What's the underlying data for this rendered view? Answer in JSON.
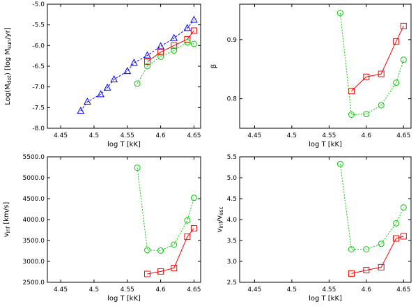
{
  "chart_data": [
    {
      "id": "mdot",
      "type": "line",
      "title": "",
      "xlabel": "log T [kK]",
      "ylabel_parts": [
        {
          "t": "Log(M"
        },
        {
          "t": "dot",
          "sub": true
        },
        {
          "t": ") [log M"
        },
        {
          "t": "sun",
          "sub": true
        },
        {
          "t": "/yr]"
        }
      ],
      "xlim": [
        4.43,
        4.66
      ],
      "ylim": [
        -8.0,
        -5.0
      ],
      "xticks": [
        4.45,
        4.5,
        4.55,
        4.6,
        4.65
      ],
      "xtick_labels": [
        "4.45",
        "4.5",
        "4.55",
        "4.6",
        "4.65"
      ],
      "yticks": [
        -8.0,
        -7.5,
        -7.0,
        -6.5,
        -6.0,
        -5.5,
        -5.0
      ],
      "ytick_labels": [
        "-8.0",
        "-7.5",
        "-7.0",
        "-6.5",
        "-6.0",
        "-5.5",
        "-5.0"
      ],
      "series": [
        {
          "name": "blue triangles",
          "color": "#0000ff",
          "marker": "triangle",
          "dash": "3,2",
          "x": [
            4.48,
            4.49,
            4.51,
            4.52,
            4.53,
            4.55,
            4.56,
            4.58,
            4.6,
            4.62,
            4.64,
            4.65
          ],
          "y": [
            -7.58,
            -7.36,
            -7.18,
            -7.02,
            -6.82,
            -6.62,
            -6.42,
            -6.24,
            -6.02,
            -5.82,
            -5.58,
            -5.38
          ]
        },
        {
          "name": "red squares",
          "color": "#ff0000",
          "marker": "square",
          "dash": "",
          "x": [
            4.58,
            4.6,
            4.62,
            4.64,
            4.65
          ],
          "y": [
            -6.39,
            -6.16,
            -6.0,
            -5.85,
            -5.64
          ]
        },
        {
          "name": "green circles",
          "color": "#00cc00",
          "marker": "circle",
          "dash": "2,2",
          "x": [
            4.565,
            4.58,
            4.6,
            4.62,
            4.64,
            4.65
          ],
          "y": [
            -6.92,
            -6.5,
            -6.27,
            -6.12,
            -5.92,
            -5.96
          ]
        }
      ]
    },
    {
      "id": "beta",
      "type": "line",
      "title": "",
      "xlabel": "log T [kK]",
      "ylabel_parts": [
        {
          "t": "β"
        }
      ],
      "xlim": [
        4.43,
        4.66
      ],
      "ylim": [
        0.75,
        0.96
      ],
      "xticks": [
        4.45,
        4.5,
        4.55,
        4.6,
        4.65
      ],
      "xtick_labels": [
        "4.45",
        "4.5",
        "4.55",
        "4.6",
        "4.65"
      ],
      "yticks": [
        0.8,
        0.9
      ],
      "ytick_labels": [
        "0.8",
        "0.9"
      ],
      "series": [
        {
          "name": "red squares",
          "color": "#ff0000",
          "marker": "square",
          "dash": "",
          "x": [
            4.58,
            4.6,
            4.62,
            4.64,
            4.65
          ],
          "y": [
            0.813,
            0.837,
            0.842,
            0.897,
            0.923
          ]
        },
        {
          "name": "green circles",
          "color": "#00cc00",
          "marker": "circle",
          "dash": "2,2",
          "x": [
            4.565,
            4.58,
            4.6,
            4.62,
            4.64,
            4.65
          ],
          "y": [
            0.945,
            0.773,
            0.774,
            0.789,
            0.827,
            0.866
          ]
        }
      ]
    },
    {
      "id": "vinf",
      "type": "line",
      "title": "",
      "xlabel": "log T [kK]",
      "ylabel_parts": [
        {
          "t": "v"
        },
        {
          "t": "inf",
          "sub": true
        },
        {
          "t": " [km/s]"
        }
      ],
      "xlim": [
        4.43,
        4.66
      ],
      "ylim": [
        2500,
        5500
      ],
      "xticks": [
        4.45,
        4.5,
        4.55,
        4.6,
        4.65
      ],
      "xtick_labels": [
        "4.45",
        "4.5",
        "4.55",
        "4.6",
        "4.65"
      ],
      "yticks": [
        2500,
        3000,
        3500,
        4000,
        4500,
        5000,
        5500
      ],
      "ytick_labels": [
        "2500.0",
        "3000.0",
        "3500.0",
        "4000.0",
        "4500.0",
        "5000.0",
        "5500.0"
      ],
      "series": [
        {
          "name": "red squares",
          "color": "#ff0000",
          "marker": "square",
          "dash": "",
          "x": [
            4.58,
            4.6,
            4.62,
            4.64,
            4.65
          ],
          "y": [
            2700,
            2760,
            2840,
            3590,
            3790
          ]
        },
        {
          "name": "green circles",
          "color": "#00cc00",
          "marker": "circle",
          "dash": "2,2",
          "x": [
            4.565,
            4.58,
            4.6,
            4.62,
            4.64,
            4.65
          ],
          "y": [
            5240,
            3270,
            3260,
            3400,
            3980,
            4520
          ]
        }
      ]
    },
    {
      "id": "ratio",
      "type": "line",
      "title": "",
      "xlabel": "log T [kK]",
      "ylabel_parts": [
        {
          "t": "v"
        },
        {
          "t": "inf",
          "sub": true
        },
        {
          "t": "/v"
        },
        {
          "t": "esc",
          "sub": true
        }
      ],
      "xlim": [
        4.43,
        4.66
      ],
      "ylim": [
        2.5,
        5.5
      ],
      "xticks": [
        4.45,
        4.5,
        4.55,
        4.6,
        4.65
      ],
      "xtick_labels": [
        "4.45",
        "4.5",
        "4.55",
        "4.6",
        "4.65"
      ],
      "yticks": [
        2.5,
        3.0,
        3.5,
        4.0,
        4.5,
        5.0,
        5.5
      ],
      "ytick_labels": [
        "2.5",
        "3.0",
        "3.5",
        "4.0",
        "4.5",
        "5.0",
        "5.5"
      ],
      "series": [
        {
          "name": "red squares",
          "color": "#ff0000",
          "marker": "square",
          "dash": "",
          "x": [
            4.58,
            4.6,
            4.62,
            4.64,
            4.65
          ],
          "y": [
            2.71,
            2.79,
            2.86,
            3.55,
            3.6
          ]
        },
        {
          "name": "green circles",
          "color": "#00cc00",
          "marker": "circle",
          "dash": "2,2",
          "x": [
            4.565,
            4.58,
            4.6,
            4.62,
            4.64,
            4.65
          ],
          "y": [
            5.33,
            3.29,
            3.29,
            3.42,
            3.91,
            4.29
          ]
        }
      ]
    }
  ]
}
